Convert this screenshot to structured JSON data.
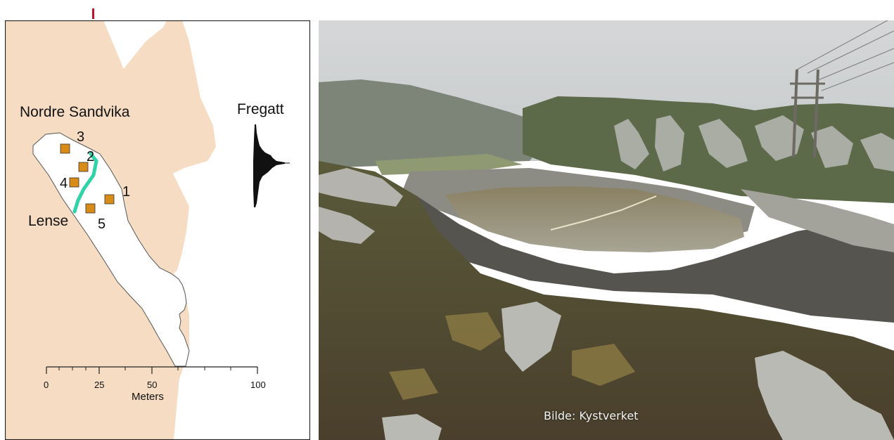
{
  "map": {
    "place_label": "Nordre Sandvika",
    "exit_label": "Lense",
    "fregatt_label": "Fregatt",
    "stations": [
      "1",
      "2",
      "3",
      "4",
      "5"
    ],
    "scale_bar": {
      "ticks": [
        "0",
        "25",
        "50",
        "100"
      ],
      "unit": "Meters"
    },
    "colors": {
      "land": "#f6dcc3",
      "water": "#ffffff",
      "station": "#d98b18",
      "transect": "#2fd3a8",
      "accent": "#c0122a"
    }
  },
  "photo": {
    "caption": "Bilde: Kystverket"
  }
}
